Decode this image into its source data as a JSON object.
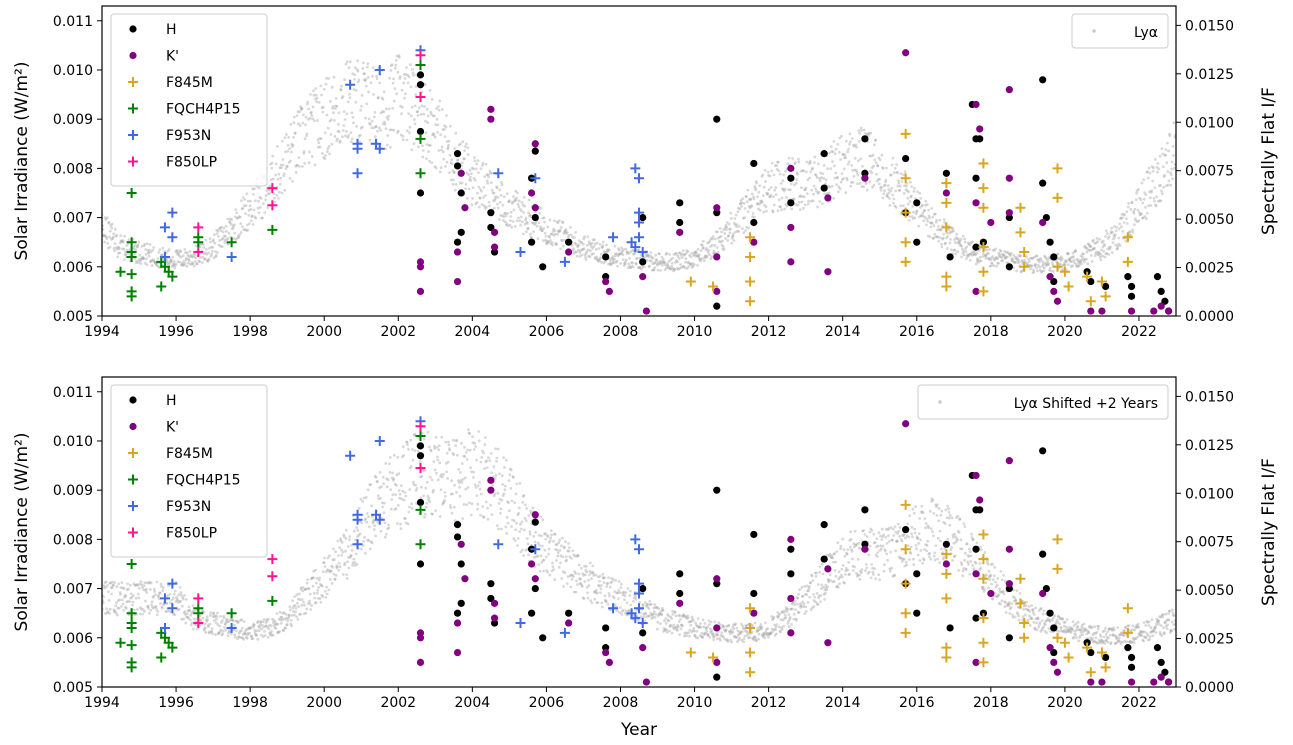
{
  "colors": {
    "H": "#000000",
    "K'": "#800080",
    "F845M": "#daa520",
    "FQCH4P15": "#008000",
    "F953N": "#4169e1",
    "F850LP": "#ff1493",
    "lya": "#a9a9a9"
  },
  "chart_data": [
    {
      "type": "scatter",
      "xlabel": "",
      "ylabel": "Solar Irradiance (W/m²)",
      "y2label": "Spectrally Flat I/F",
      "xlim": [
        1994,
        2023
      ],
      "ylim": [
        0.005,
        0.0113
      ],
      "y2lim": [
        0,
        0.016
      ],
      "xticks": [
        "1994",
        "1996",
        "1998",
        "2000",
        "2002",
        "2004",
        "2006",
        "2008",
        "2010",
        "2012",
        "2014",
        "2016",
        "2018",
        "2020",
        "2022"
      ],
      "yticks": [
        "0.005",
        "0.006",
        "0.007",
        "0.008",
        "0.009",
        "0.010",
        "0.011"
      ],
      "y2ticks": [
        "0.0000",
        "0.0025",
        "0.0050",
        "0.0075",
        "0.0100",
        "0.0125",
        "0.0150"
      ],
      "legend_left": [
        "H",
        "K'",
        "F845M",
        "FQCH4P15",
        "F953N",
        "F850LP"
      ],
      "legend_right": "Lyα",
      "lya_shift_years": 0,
      "grid": false
    },
    {
      "type": "scatter",
      "xlabel": "Year",
      "ylabel": "Solar Irradiance (W/m²)",
      "y2label": "Spectrally Flat I/F",
      "xlim": [
        1994,
        2023
      ],
      "ylim": [
        0.005,
        0.0113
      ],
      "y2lim": [
        0,
        0.016
      ],
      "xticks": [
        "1994",
        "1996",
        "1998",
        "2000",
        "2002",
        "2004",
        "2006",
        "2008",
        "2010",
        "2012",
        "2014",
        "2016",
        "2018",
        "2020",
        "2022"
      ],
      "yticks": [
        "0.005",
        "0.006",
        "0.007",
        "0.008",
        "0.009",
        "0.010",
        "0.011"
      ],
      "y2ticks": [
        "0.0000",
        "0.0025",
        "0.0050",
        "0.0075",
        "0.0100",
        "0.0125",
        "0.0150"
      ],
      "legend_left": [
        "H",
        "K'",
        "F845M",
        "FQCH4P15",
        "F953N",
        "F850LP"
      ],
      "legend_right": "Lyα Shifted +2 Years",
      "lya_shift_years": 2,
      "grid": false
    }
  ],
  "lya_curve": [
    [
      1994.0,
      0.0068
    ],
    [
      1994.5,
      0.0064
    ],
    [
      1995.0,
      0.0063
    ],
    [
      1995.5,
      0.0062
    ],
    [
      1996.0,
      0.00615
    ],
    [
      1996.5,
      0.0062
    ],
    [
      1997.0,
      0.0064
    ],
    [
      1997.5,
      0.0068
    ],
    [
      1998.0,
      0.0072
    ],
    [
      1998.5,
      0.0076
    ],
    [
      1999.0,
      0.0082
    ],
    [
      1999.5,
      0.0087
    ],
    [
      2000.0,
      0.009
    ],
    [
      2000.5,
      0.0093
    ],
    [
      2001.0,
      0.0094
    ],
    [
      2001.5,
      0.0092
    ],
    [
      2002.0,
      0.0094
    ],
    [
      2002.5,
      0.0092
    ],
    [
      2003.0,
      0.0088
    ],
    [
      2003.5,
      0.0082
    ],
    [
      2004.0,
      0.0078
    ],
    [
      2004.5,
      0.0075
    ],
    [
      2005.0,
      0.0072
    ],
    [
      2005.5,
      0.007
    ],
    [
      2006.0,
      0.0068
    ],
    [
      2006.5,
      0.0066
    ],
    [
      2007.0,
      0.0064
    ],
    [
      2007.5,
      0.0063
    ],
    [
      2008.0,
      0.0062
    ],
    [
      2008.5,
      0.00615
    ],
    [
      2009.0,
      0.0061
    ],
    [
      2009.5,
      0.0061
    ],
    [
      2010.0,
      0.0062
    ],
    [
      2010.5,
      0.0064
    ],
    [
      2011.0,
      0.0068
    ],
    [
      2011.5,
      0.0072
    ],
    [
      2012.0,
      0.0076
    ],
    [
      2012.5,
      0.0077
    ],
    [
      2013.0,
      0.0077
    ],
    [
      2013.5,
      0.0078
    ],
    [
      2014.0,
      0.0081
    ],
    [
      2014.5,
      0.0082
    ],
    [
      2015.0,
      0.008
    ],
    [
      2015.5,
      0.0076
    ],
    [
      2016.0,
      0.0072
    ],
    [
      2016.5,
      0.0068
    ],
    [
      2017.0,
      0.0065
    ],
    [
      2017.5,
      0.0063
    ],
    [
      2018.0,
      0.0062
    ],
    [
      2018.5,
      0.0061
    ],
    [
      2019.0,
      0.00605
    ],
    [
      2019.5,
      0.00605
    ],
    [
      2020.0,
      0.0061
    ],
    [
      2020.5,
      0.0062
    ],
    [
      2021.0,
      0.0064
    ],
    [
      2021.5,
      0.0067
    ],
    [
      2022.0,
      0.0072
    ],
    [
      2022.5,
      0.0078
    ],
    [
      2023.0,
      0.0084
    ]
  ],
  "points": [
    {
      "s": "H",
      "x": 2002.6,
      "y": 0.0099
    },
    {
      "s": "H",
      "x": 2002.6,
      "y": 0.0097
    },
    {
      "s": "H",
      "x": 2002.6,
      "y": 0.00875
    },
    {
      "s": "H",
      "x": 2002.6,
      "y": 0.0075
    },
    {
      "s": "H",
      "x": 2003.6,
      "y": 0.0083
    },
    {
      "s": "H",
      "x": 2003.6,
      "y": 0.00805
    },
    {
      "s": "H",
      "x": 2003.6,
      "y": 0.0065
    },
    {
      "s": "H",
      "x": 2003.7,
      "y": 0.0067
    },
    {
      "s": "H",
      "x": 2003.7,
      "y": 0.0075
    },
    {
      "s": "H",
      "x": 2004.5,
      "y": 0.0071
    },
    {
      "s": "H",
      "x": 2004.5,
      "y": 0.0068
    },
    {
      "s": "H",
      "x": 2004.6,
      "y": 0.0063
    },
    {
      "s": "H",
      "x": 2005.6,
      "y": 0.0078
    },
    {
      "s": "H",
      "x": 2005.6,
      "y": 0.0065
    },
    {
      "s": "H",
      "x": 2005.7,
      "y": 0.00835
    },
    {
      "s": "H",
      "x": 2005.7,
      "y": 0.007
    },
    {
      "s": "H",
      "x": 2005.9,
      "y": 0.006
    },
    {
      "s": "H",
      "x": 2006.6,
      "y": 0.0065
    },
    {
      "s": "H",
      "x": 2007.6,
      "y": 0.0062
    },
    {
      "s": "H",
      "x": 2007.6,
      "y": 0.0058
    },
    {
      "s": "H",
      "x": 2008.6,
      "y": 0.007
    },
    {
      "s": "H",
      "x": 2008.6,
      "y": 0.0061
    },
    {
      "s": "H",
      "x": 2009.6,
      "y": 0.0073
    },
    {
      "s": "H",
      "x": 2009.6,
      "y": 0.0069
    },
    {
      "s": "H",
      "x": 2010.6,
      "y": 0.009
    },
    {
      "s": "H",
      "x": 2010.6,
      "y": 0.0071
    },
    {
      "s": "H",
      "x": 2010.6,
      "y": 0.0052
    },
    {
      "s": "H",
      "x": 2011.6,
      "y": 0.0081
    },
    {
      "s": "H",
      "x": 2011.6,
      "y": 0.0069
    },
    {
      "s": "H",
      "x": 2012.6,
      "y": 0.0078
    },
    {
      "s": "H",
      "x": 2012.6,
      "y": 0.0073
    },
    {
      "s": "H",
      "x": 2013.5,
      "y": 0.0083
    },
    {
      "s": "H",
      "x": 2013.5,
      "y": 0.0076
    },
    {
      "s": "H",
      "x": 2014.6,
      "y": 0.0086
    },
    {
      "s": "H",
      "x": 2014.6,
      "y": 0.0079
    },
    {
      "s": "H",
      "x": 2015.7,
      "y": 0.0082
    },
    {
      "s": "H",
      "x": 2015.7,
      "y": 0.0071
    },
    {
      "s": "H",
      "x": 2016.0,
      "y": 0.0073
    },
    {
      "s": "H",
      "x": 2016.0,
      "y": 0.0065
    },
    {
      "s": "H",
      "x": 2016.8,
      "y": 0.0079
    },
    {
      "s": "H",
      "x": 2016.9,
      "y": 0.0062
    },
    {
      "s": "H",
      "x": 2017.5,
      "y": 0.0093
    },
    {
      "s": "H",
      "x": 2017.6,
      "y": 0.0086
    },
    {
      "s": "H",
      "x": 2017.7,
      "y": 0.0086
    },
    {
      "s": "H",
      "x": 2017.6,
      "y": 0.0078
    },
    {
      "s": "H",
      "x": 2017.6,
      "y": 0.0064
    },
    {
      "s": "H",
      "x": 2017.8,
      "y": 0.0065
    },
    {
      "s": "H",
      "x": 2018.5,
      "y": 0.007
    },
    {
      "s": "H",
      "x": 2018.5,
      "y": 0.006
    },
    {
      "s": "H",
      "x": 2019.4,
      "y": 0.0098
    },
    {
      "s": "H",
      "x": 2019.4,
      "y": 0.0077
    },
    {
      "s": "H",
      "x": 2019.5,
      "y": 0.007
    },
    {
      "s": "H",
      "x": 2019.6,
      "y": 0.0065
    },
    {
      "s": "H",
      "x": 2019.7,
      "y": 0.0062
    },
    {
      "s": "H",
      "x": 2019.7,
      "y": 0.0057
    },
    {
      "s": "H",
      "x": 2020.6,
      "y": 0.0059
    },
    {
      "s": "H",
      "x": 2020.7,
      "y": 0.0057
    },
    {
      "s": "H",
      "x": 2021.1,
      "y": 0.0056
    },
    {
      "s": "H",
      "x": 2021.7,
      "y": 0.0058
    },
    {
      "s": "H",
      "x": 2021.8,
      "y": 0.0056
    },
    {
      "s": "H",
      "x": 2021.8,
      "y": 0.0054
    },
    {
      "s": "H",
      "x": 2022.5,
      "y": 0.0058
    },
    {
      "s": "H",
      "x": 2022.6,
      "y": 0.0055
    },
    {
      "s": "H",
      "x": 2022.7,
      "y": 0.0053
    },
    {
      "s": "H",
      "x": 2022.8,
      "y": 0.0051
    },
    {
      "s": "K'",
      "x": 2002.6,
      "y": 0.0061
    },
    {
      "s": "K'",
      "x": 2002.6,
      "y": 0.006
    },
    {
      "s": "K'",
      "x": 2002.6,
      "y": 0.0055
    },
    {
      "s": "K'",
      "x": 2003.6,
      "y": 0.0063
    },
    {
      "s": "K'",
      "x": 2003.6,
      "y": 0.0057
    },
    {
      "s": "K'",
      "x": 2003.7,
      "y": 0.0079
    },
    {
      "s": "K'",
      "x": 2003.8,
      "y": 0.0072
    },
    {
      "s": "K'",
      "x": 2004.5,
      "y": 0.0092
    },
    {
      "s": "K'",
      "x": 2004.5,
      "y": 0.009
    },
    {
      "s": "K'",
      "x": 2004.6,
      "y": 0.0067
    },
    {
      "s": "K'",
      "x": 2004.6,
      "y": 0.0064
    },
    {
      "s": "K'",
      "x": 2005.6,
      "y": 0.0075
    },
    {
      "s": "K'",
      "x": 2005.7,
      "y": 0.0085
    },
    {
      "s": "K'",
      "x": 2005.7,
      "y": 0.0072
    },
    {
      "s": "K'",
      "x": 2006.6,
      "y": 0.0063
    },
    {
      "s": "K'",
      "x": 2007.6,
      "y": 0.0057
    },
    {
      "s": "K'",
      "x": 2007.7,
      "y": 0.0055
    },
    {
      "s": "K'",
      "x": 2008.6,
      "y": 0.0058
    },
    {
      "s": "K'",
      "x": 2008.7,
      "y": 0.0051
    },
    {
      "s": "K'",
      "x": 2009.6,
      "y": 0.0067
    },
    {
      "s": "K'",
      "x": 2010.6,
      "y": 0.0072
    },
    {
      "s": "K'",
      "x": 2010.6,
      "y": 0.0062
    },
    {
      "s": "K'",
      "x": 2010.6,
      "y": 0.0055
    },
    {
      "s": "K'",
      "x": 2011.6,
      "y": 0.0065
    },
    {
      "s": "K'",
      "x": 2012.6,
      "y": 0.008
    },
    {
      "s": "K'",
      "x": 2012.6,
      "y": 0.0068
    },
    {
      "s": "K'",
      "x": 2012.6,
      "y": 0.0061
    },
    {
      "s": "K'",
      "x": 2013.6,
      "y": 0.0074
    },
    {
      "s": "K'",
      "x": 2013.6,
      "y": 0.0059
    },
    {
      "s": "K'",
      "x": 2014.6,
      "y": 0.0078
    },
    {
      "s": "K'",
      "x": 2015.7,
      "y": 0.01035
    },
    {
      "s": "K'",
      "x": 2016.8,
      "y": 0.0075
    },
    {
      "s": "K'",
      "x": 2017.6,
      "y": 0.0093
    },
    {
      "s": "K'",
      "x": 2017.6,
      "y": 0.0073
    },
    {
      "s": "K'",
      "x": 2017.7,
      "y": 0.0088
    },
    {
      "s": "K'",
      "x": 2017.6,
      "y": 0.0055
    },
    {
      "s": "K'",
      "x": 2018.0,
      "y": 0.0069
    },
    {
      "s": "K'",
      "x": 2018.5,
      "y": 0.0096
    },
    {
      "s": "K'",
      "x": 2018.5,
      "y": 0.0078
    },
    {
      "s": "K'",
      "x": 2018.5,
      "y": 0.0071
    },
    {
      "s": "K'",
      "x": 2019.4,
      "y": 0.0069
    },
    {
      "s": "K'",
      "x": 2019.6,
      "y": 0.0058
    },
    {
      "s": "K'",
      "x": 2019.7,
      "y": 0.0055
    },
    {
      "s": "K'",
      "x": 2019.8,
      "y": 0.0053
    },
    {
      "s": "K'",
      "x": 2020.7,
      "y": 0.0051
    },
    {
      "s": "K'",
      "x": 2021.0,
      "y": 0.0051
    },
    {
      "s": "K'",
      "x": 2021.8,
      "y": 0.0051
    },
    {
      "s": "K'",
      "x": 2022.4,
      "y": 0.0051
    },
    {
      "s": "K'",
      "x": 2022.6,
      "y": 0.0052
    },
    {
      "s": "K'",
      "x": 2022.8,
      "y": 0.0051
    },
    {
      "s": "F845M",
      "x": 2009.9,
      "y": 0.0057
    },
    {
      "s": "F845M",
      "x": 2010.5,
      "y": 0.0056
    },
    {
      "s": "F845M",
      "x": 2011.5,
      "y": 0.0066
    },
    {
      "s": "F845M",
      "x": 2011.5,
      "y": 0.0062
    },
    {
      "s": "F845M",
      "x": 2011.5,
      "y": 0.0057
    },
    {
      "s": "F845M",
      "x": 2011.5,
      "y": 0.0053
    },
    {
      "s": "F845M",
      "x": 2015.7,
      "y": 0.0087
    },
    {
      "s": "F845M",
      "x": 2015.7,
      "y": 0.0078
    },
    {
      "s": "F845M",
      "x": 2015.7,
      "y": 0.0071
    },
    {
      "s": "F845M",
      "x": 2015.7,
      "y": 0.0065
    },
    {
      "s": "F845M",
      "x": 2015.7,
      "y": 0.0061
    },
    {
      "s": "F845M",
      "x": 2016.8,
      "y": 0.0077
    },
    {
      "s": "F845M",
      "x": 2016.8,
      "y": 0.0073
    },
    {
      "s": "F845M",
      "x": 2016.8,
      "y": 0.0068
    },
    {
      "s": "F845M",
      "x": 2016.8,
      "y": 0.0058
    },
    {
      "s": "F845M",
      "x": 2016.8,
      "y": 0.0056
    },
    {
      "s": "F845M",
      "x": 2017.8,
      "y": 0.0081
    },
    {
      "s": "F845M",
      "x": 2017.8,
      "y": 0.0076
    },
    {
      "s": "F845M",
      "x": 2017.8,
      "y": 0.0072
    },
    {
      "s": "F845M",
      "x": 2017.8,
      "y": 0.0064
    },
    {
      "s": "F845M",
      "x": 2017.8,
      "y": 0.0059
    },
    {
      "s": "F845M",
      "x": 2017.8,
      "y": 0.0055
    },
    {
      "s": "F845M",
      "x": 2018.8,
      "y": 0.0072
    },
    {
      "s": "F845M",
      "x": 2018.8,
      "y": 0.0067
    },
    {
      "s": "F845M",
      "x": 2018.9,
      "y": 0.0063
    },
    {
      "s": "F845M",
      "x": 2018.9,
      "y": 0.006
    },
    {
      "s": "F845M",
      "x": 2019.8,
      "y": 0.008
    },
    {
      "s": "F845M",
      "x": 2019.8,
      "y": 0.0074
    },
    {
      "s": "F845M",
      "x": 2019.8,
      "y": 0.006
    },
    {
      "s": "F845M",
      "x": 2020.0,
      "y": 0.0059
    },
    {
      "s": "F845M",
      "x": 2020.1,
      "y": 0.0056
    },
    {
      "s": "F845M",
      "x": 2020.6,
      "y": 0.0058
    },
    {
      "s": "F845M",
      "x": 2020.7,
      "y": 0.0053
    },
    {
      "s": "F845M",
      "x": 2021.0,
      "y": 0.0057
    },
    {
      "s": "F845M",
      "x": 2021.1,
      "y": 0.0054
    },
    {
      "s": "F845M",
      "x": 2021.7,
      "y": 0.0066
    },
    {
      "s": "F845M",
      "x": 2021.7,
      "y": 0.0061
    },
    {
      "s": "FQCH4P15",
      "x": 1994.8,
      "y": 0.0075
    },
    {
      "s": "FQCH4P15",
      "x": 1994.8,
      "y": 0.0065
    },
    {
      "s": "FQCH4P15",
      "x": 1994.8,
      "y": 0.0063
    },
    {
      "s": "FQCH4P15",
      "x": 1994.8,
      "y": 0.0062
    },
    {
      "s": "FQCH4P15",
      "x": 1994.5,
      "y": 0.0059
    },
    {
      "s": "FQCH4P15",
      "x": 1994.8,
      "y": 0.00585
    },
    {
      "s": "FQCH4P15",
      "x": 1994.8,
      "y": 0.0055
    },
    {
      "s": "FQCH4P15",
      "x": 1994.8,
      "y": 0.0054
    },
    {
      "s": "FQCH4P15",
      "x": 1995.6,
      "y": 0.0061
    },
    {
      "s": "FQCH4P15",
      "x": 1995.7,
      "y": 0.006
    },
    {
      "s": "FQCH4P15",
      "x": 1995.8,
      "y": 0.0059
    },
    {
      "s": "FQCH4P15",
      "x": 1995.9,
      "y": 0.0058
    },
    {
      "s": "FQCH4P15",
      "x": 1995.6,
      "y": 0.0056
    },
    {
      "s": "FQCH4P15",
      "x": 1996.6,
      "y": 0.0066
    },
    {
      "s": "FQCH4P15",
      "x": 1996.6,
      "y": 0.0065
    },
    {
      "s": "FQCH4P15",
      "x": 1997.5,
      "y": 0.0065
    },
    {
      "s": "FQCH4P15",
      "x": 1998.6,
      "y": 0.00675
    },
    {
      "s": "FQCH4P15",
      "x": 2002.6,
      "y": 0.0086
    },
    {
      "s": "FQCH4P15",
      "x": 2002.6,
      "y": 0.0079
    },
    {
      "s": "FQCH4P15",
      "x": 2002.6,
      "y": 0.0101
    },
    {
      "s": "F953N",
      "x": 1995.7,
      "y": 0.0068
    },
    {
      "s": "F953N",
      "x": 1995.9,
      "y": 0.0071
    },
    {
      "s": "F953N",
      "x": 1995.9,
      "y": 0.0066
    },
    {
      "s": "F953N",
      "x": 1995.7,
      "y": 0.0062
    },
    {
      "s": "F953N",
      "x": 1997.5,
      "y": 0.0062
    },
    {
      "s": "F953N",
      "x": 2000.7,
      "y": 0.0097
    },
    {
      "s": "F953N",
      "x": 2000.9,
      "y": 0.0085
    },
    {
      "s": "F953N",
      "x": 2000.9,
      "y": 0.0084
    },
    {
      "s": "F953N",
      "x": 2000.9,
      "y": 0.0079
    },
    {
      "s": "F953N",
      "x": 2001.5,
      "y": 0.01
    },
    {
      "s": "F953N",
      "x": 2001.4,
      "y": 0.0085
    },
    {
      "s": "F953N",
      "x": 2001.5,
      "y": 0.0084
    },
    {
      "s": "F953N",
      "x": 2002.6,
      "y": 0.0104
    },
    {
      "s": "F953N",
      "x": 2004.7,
      "y": 0.0079
    },
    {
      "s": "F953N",
      "x": 2005.3,
      "y": 0.0063
    },
    {
      "s": "F953N",
      "x": 2005.7,
      "y": 0.0078
    },
    {
      "s": "F953N",
      "x": 2006.5,
      "y": 0.0061
    },
    {
      "s": "F953N",
      "x": 2007.8,
      "y": 0.0066
    },
    {
      "s": "F953N",
      "x": 2008.3,
      "y": 0.0065
    },
    {
      "s": "F953N",
      "x": 2008.4,
      "y": 0.0064
    },
    {
      "s": "F953N",
      "x": 2008.4,
      "y": 0.008
    },
    {
      "s": "F953N",
      "x": 2008.5,
      "y": 0.0078
    },
    {
      "s": "F953N",
      "x": 2008.5,
      "y": 0.0071
    },
    {
      "s": "F953N",
      "x": 2008.5,
      "y": 0.0069
    },
    {
      "s": "F953N",
      "x": 2008.5,
      "y": 0.0066
    },
    {
      "s": "F953N",
      "x": 2008.6,
      "y": 0.0063
    },
    {
      "s": "F850LP",
      "x": 1996.6,
      "y": 0.0068
    },
    {
      "s": "F850LP",
      "x": 1996.6,
      "y": 0.0063
    },
    {
      "s": "F850LP",
      "x": 1998.6,
      "y": 0.0076
    },
    {
      "s": "F850LP",
      "x": 1998.6,
      "y": 0.00725
    },
    {
      "s": "F850LP",
      "x": 2002.6,
      "y": 0.0103
    },
    {
      "s": "F850LP",
      "x": 2002.6,
      "y": 0.00945
    }
  ]
}
